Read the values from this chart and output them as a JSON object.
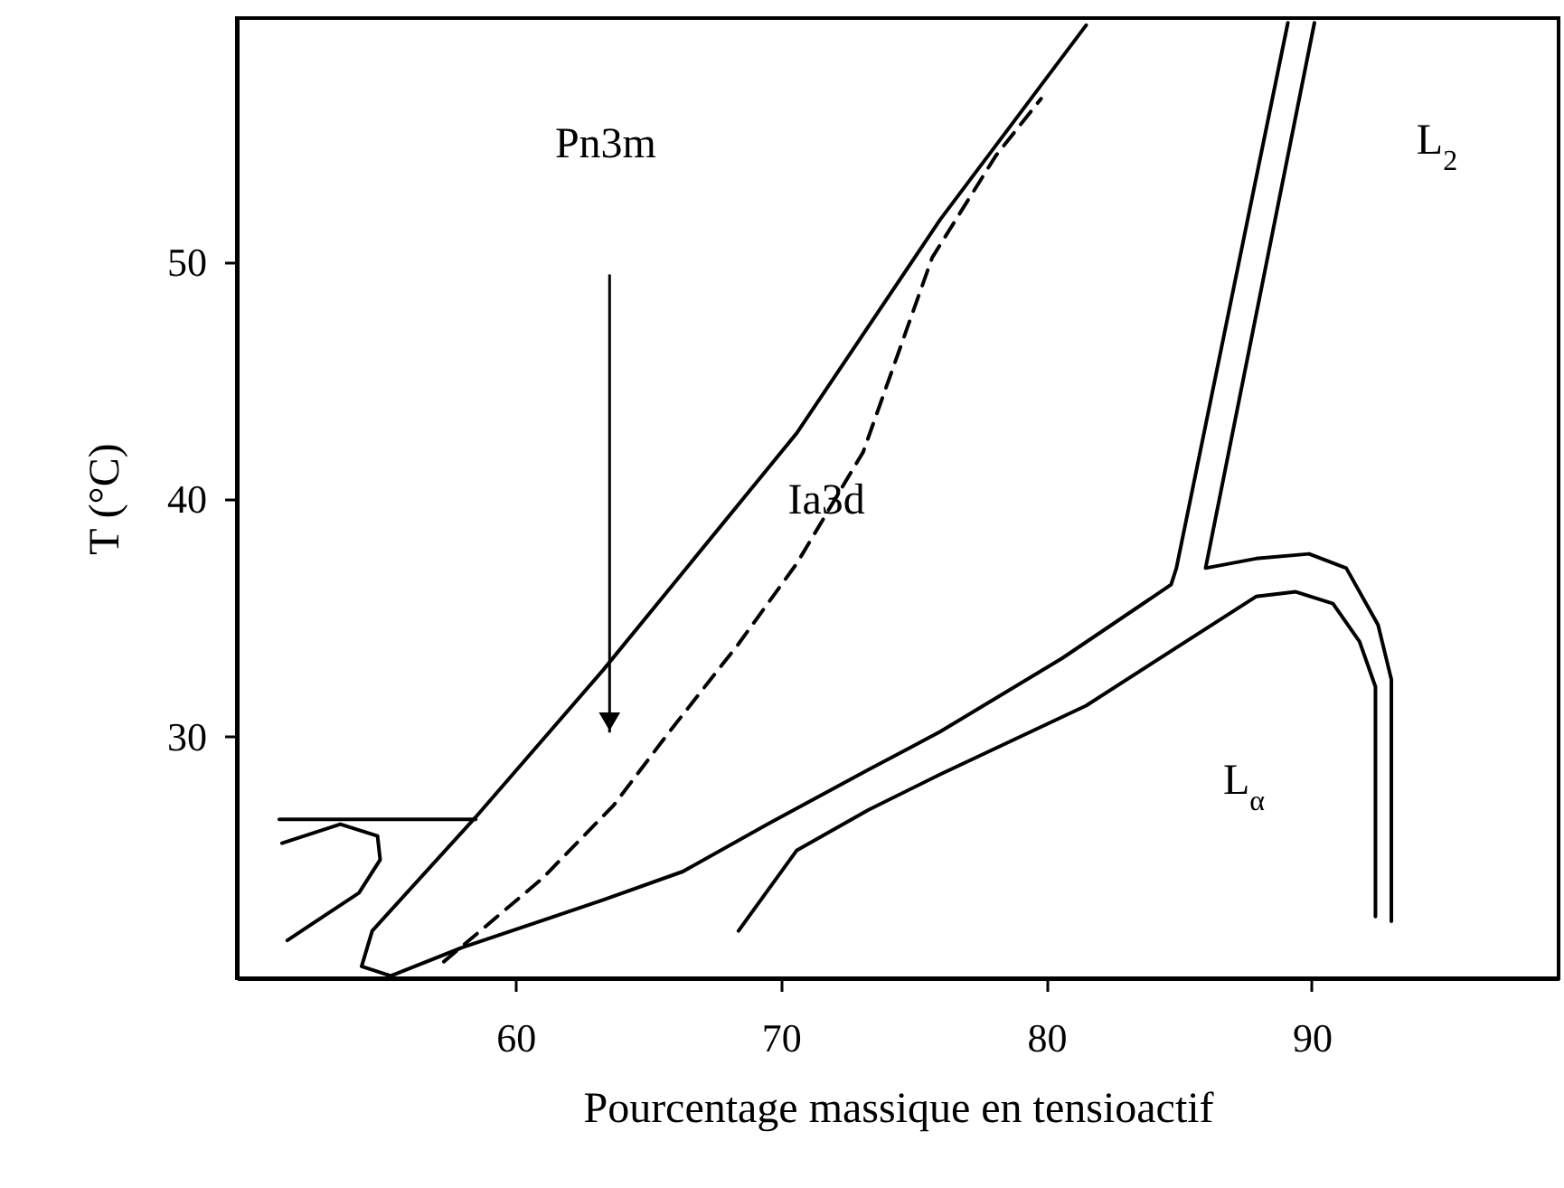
{
  "chart_data": {
    "type": "line",
    "xlabel": "Pourcentage massique en tensioactif",
    "ylabel": "T (°C)",
    "xlim": [
      49.5,
      99.3
    ],
    "ylim": [
      19.8,
      60.3
    ],
    "xticks": [
      60,
      70,
      80,
      90
    ],
    "yticks": [
      30,
      40,
      50
    ],
    "series": [
      {
        "color": "#000000",
        "x": [
          55.3,
          54.2,
          54.6,
          58.5,
          63.3,
          70.6,
          76.0,
          81.5
        ],
        "values": [
          19.9,
          20.3,
          21.8,
          26.6,
          32.8,
          42.8,
          51.8,
          60.0
        ]
      },
      {
        "color": "#000000",
        "line_style": "dashed",
        "x": [
          57.3,
          61.0,
          63.7,
          65.8,
          68.4,
          70.6,
          73.1,
          75.7,
          78.1,
          79.8
        ],
        "values": [
          20.5,
          24.0,
          27.1,
          30.2,
          33.9,
          37.3,
          42.0,
          50.2,
          54.5,
          56.9
        ]
      },
      {
        "color": "#000000",
        "x": [
          55.3,
          58.0,
          63.3,
          66.3,
          69.5,
          73.3,
          76.0,
          80.6,
          84.7,
          84.9,
          89.1
        ],
        "values": [
          19.9,
          21.1,
          23.1,
          24.3,
          26.3,
          28.6,
          30.2,
          33.3,
          36.4,
          37.1,
          60.1
        ]
      },
      {
        "color": "#000000",
        "x": [
          90.1,
          86.0,
          87.9,
          89.9,
          91.3,
          92.5,
          93.0,
          93.0
        ],
        "values": [
          60.1,
          37.1,
          37.5,
          37.7,
          37.1,
          34.7,
          32.4,
          22.2
        ]
      },
      {
        "color": "#000000",
        "x": [
          68.4,
          70.6,
          73.3,
          76.0,
          81.5,
          87.9,
          89.4,
          90.8,
          91.8,
          92.4,
          92.4
        ],
        "values": [
          21.8,
          25.2,
          26.9,
          28.4,
          31.3,
          35.9,
          36.1,
          35.6,
          34.0,
          32.1,
          22.4
        ]
      },
      {
        "color": "#000000",
        "x": [
          51.1,
          58.5
        ],
        "values": [
          26.5,
          26.5
        ]
      },
      {
        "color": "#000000",
        "x": [
          51.2,
          53.4,
          54.8,
          54.9,
          54.1,
          51.4
        ],
        "values": [
          25.5,
          26.3,
          25.8,
          24.8,
          23.4,
          21.4
        ]
      }
    ],
    "annotations": [
      "Pn3m",
      "Ia3d",
      "L$_{2}$",
      "L$_{α}$"
    ]
  }
}
